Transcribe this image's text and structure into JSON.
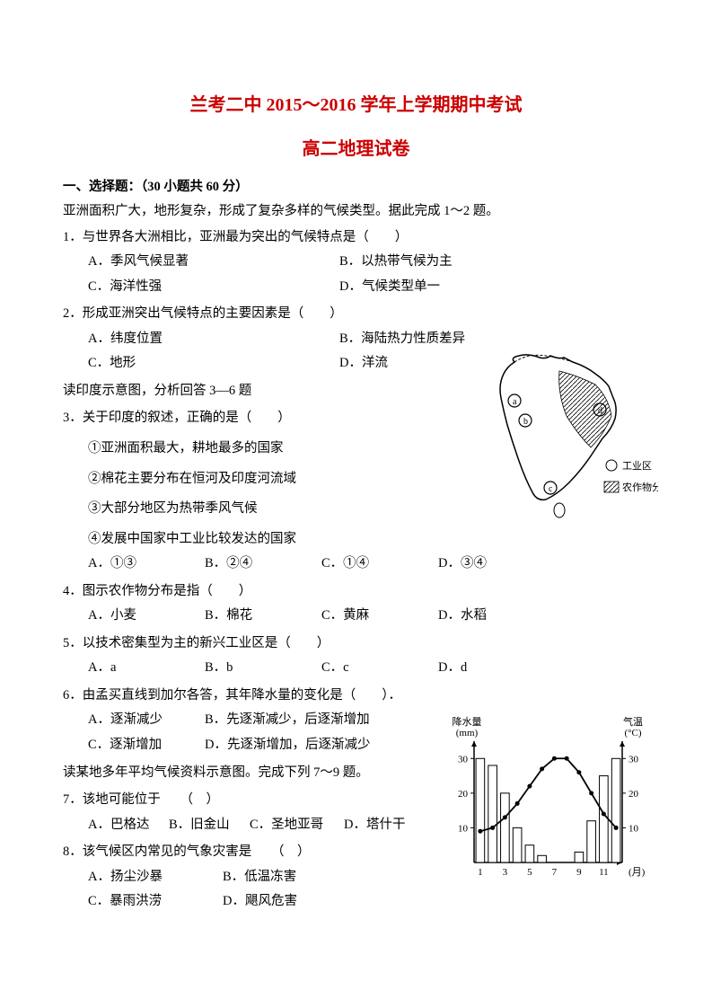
{
  "header": {
    "title1": "兰考二中 2015～2016 学年上学期期中考试",
    "title2": "高二地理试卷"
  },
  "section1": {
    "header": "一、选择题：（30 小题共 60 分）",
    "intro": "亚洲面积广大，地形复杂，形成了复杂多样的气候类型。据此完成 1～2 题。"
  },
  "q1": {
    "text": "1．与世界各大洲相比，亚洲最为突出的气候特点是（　　）",
    "optA": "A．季风气候显著",
    "optB": "B．以热带气候为主",
    "optC": "C．海洋性强",
    "optD": "D．气候类型单一"
  },
  "q2": {
    "text": "2．形成亚洲突出气候特点的主要因素是（　　）",
    "optA": "A．纬度位置",
    "optB": "B．海陆热力性质差异",
    "optC": "C．地形",
    "optD": "D．洋流"
  },
  "intro36": "读印度示意图，分析回答 3—6 题",
  "q3": {
    "text": "3．关于印度的叙述，正确的是（　　）",
    "s1": "①亚洲面积最大，耕地最多的国家",
    "s2": "②棉花主要分布在恒河及印度河流域",
    "s3": "③大部分地区为热带季风气候",
    "s4": "④发展中国家中工业比较发达的国家",
    "optA": "A．①③",
    "optB": "B．②④",
    "optC": "C．①④",
    "optD": "D．③④"
  },
  "q4": {
    "text": "4．图示农作物分布是指（　　）",
    "optA": "A．小麦",
    "optB": "B．棉花",
    "optC": "C．黄麻",
    "optD": "D．水稻"
  },
  "q5": {
    "text": "5．以技术密集型为主的新兴工业区是（　　）",
    "optA": "A．a",
    "optB": "B．b",
    "optC": "C．c",
    "optD": "D．d"
  },
  "q6": {
    "text": "6．由孟买直线到加尔各答，其年降水量的变化是（　　）．",
    "optA": "A．逐渐减少",
    "optB": "B．先逐渐减少，后逐渐增加",
    "optC": "C．逐渐增加",
    "optD": "D．先逐渐增加，后逐渐减少"
  },
  "intro79": "读某地多年平均气候资料示意图。完成下列 7～9 题。",
  "q7": {
    "text": "7．该地可能位于　　（　）",
    "optA": "A．巴格达",
    "optB": "B．旧金山",
    "optC": "C．圣地亚哥",
    "optD": "D．塔什干"
  },
  "q8": {
    "text": "8．该气候区内常见的气象灾害是　　（　）",
    "optA": "A．扬尘沙暴",
    "optB": "B．低温冻害",
    "optC": "C．暴雨洪涝",
    "optD": "D．飓风危害"
  },
  "map": {
    "legend1": "工业区",
    "legend2": "农作物分布区",
    "labels": {
      "a": "a",
      "b": "b",
      "c": "c",
      "d": "d"
    }
  },
  "chart": {
    "type": "climate-chart",
    "yleft_label": "降水量",
    "yleft_unit": "(mm)",
    "yright_label": "气温",
    "yright_unit": "(°C)",
    "x_unit": "(月)",
    "yleft_ticks": [
      "10",
      "20",
      "30"
    ],
    "yright_ticks": [
      "10",
      "20",
      "30"
    ],
    "x_ticks": [
      "1",
      "3",
      "5",
      "7",
      "9",
      "11"
    ],
    "precipitation": [
      30,
      28,
      20,
      10,
      5,
      2,
      0,
      0,
      3,
      12,
      25,
      30
    ],
    "temperature": [
      9,
      10,
      13,
      17,
      22,
      27,
      30,
      30,
      26,
      20,
      14,
      10
    ],
    "colors": {
      "background": "#ffffff",
      "axis": "#000000",
      "bar_fill": "#ffffff",
      "bar_stroke": "#000000",
      "line_stroke": "#000000",
      "marker_fill": "#000000"
    },
    "ylim_precip": [
      0,
      35
    ],
    "ylim_temp": [
      0,
      35
    ],
    "bar_width": 0.7
  }
}
